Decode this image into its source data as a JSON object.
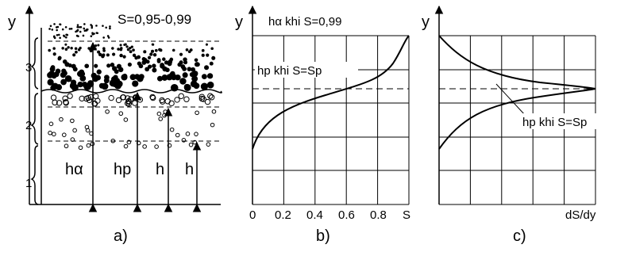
{
  "panel_a": {
    "axis_label": "y",
    "range_label": "S=0,95-0,99",
    "layer_labels": [
      "3",
      "2",
      "1"
    ],
    "height_labels": [
      "hα",
      "hp",
      "h",
      "h"
    ],
    "caption": "a)"
  },
  "panel_b": {
    "axis_label": "y",
    "top_label": "hα khi S=0,99",
    "curve_label": "hp khi S=Sp",
    "x_tick_labels": [
      "0",
      "0.2",
      "0.4",
      "0.6",
      "0.8"
    ],
    "x_axis_label": "S",
    "caption": "b)"
  },
  "panel_c": {
    "axis_label": "y",
    "curve_label": "hp khi S=Sp",
    "x_axis_label": "dS/dy",
    "caption": "c)"
  }
}
